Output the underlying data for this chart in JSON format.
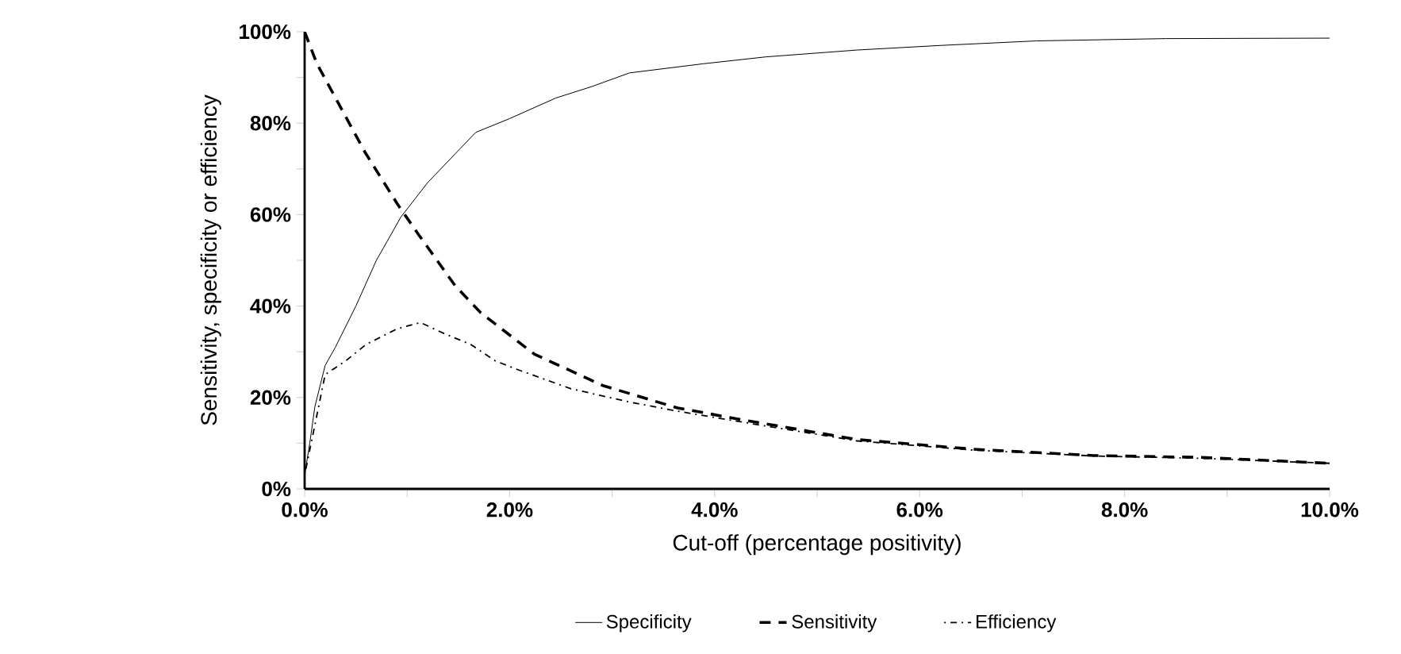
{
  "chart_data": {
    "type": "line",
    "xlabel": "Cut-off (percentage positivity)",
    "ylabel": "Sensitivity, specificity or efficiency",
    "xlim": [
      0,
      10
    ],
    "ylim": [
      0,
      100
    ],
    "xticks": [
      {
        "value": 0,
        "label": "0.0%"
      },
      {
        "value": 1,
        "label": null
      },
      {
        "value": 2,
        "label": "2.0%"
      },
      {
        "value": 3,
        "label": null
      },
      {
        "value": 4,
        "label": "4.0%"
      },
      {
        "value": 5,
        "label": null
      },
      {
        "value": 6,
        "label": "6.0%"
      },
      {
        "value": 7,
        "label": null
      },
      {
        "value": 8,
        "label": "8.0%"
      },
      {
        "value": 9,
        "label": null
      },
      {
        "value": 10,
        "label": "10.0%"
      }
    ],
    "yticks": [
      {
        "value": 0,
        "label": "0%"
      },
      {
        "value": 10,
        "label": null
      },
      {
        "value": 20,
        "label": "20%"
      },
      {
        "value": 30,
        "label": null
      },
      {
        "value": 40,
        "label": "40%"
      },
      {
        "value": 50,
        "label": null
      },
      {
        "value": 60,
        "label": "60%"
      },
      {
        "value": 70,
        "label": null
      },
      {
        "value": 80,
        "label": "80%"
      },
      {
        "value": 90,
        "label": null
      },
      {
        "value": 100,
        "label": "100%"
      }
    ],
    "legend": "bottom",
    "marker": "none",
    "series": [
      {
        "name": "Specificity",
        "color": "#000000",
        "line_style": "solid",
        "x": [
          0,
          0.05,
          0.1,
          0.2,
          0.3,
          0.5,
          0.7,
          0.94,
          1.2,
          1.67,
          2.0,
          2.45,
          2.8,
          3.17,
          3.89,
          4.5,
          5.39,
          6.2,
          7.14,
          8.4,
          10
        ],
        "values": [
          3,
          10,
          18,
          27,
          31,
          40,
          50,
          59.5,
          67,
          78,
          81,
          85.5,
          88,
          91,
          93,
          94.5,
          96,
          97,
          98,
          98.5,
          98.6
        ]
      },
      {
        "name": "Sensitivity",
        "color": "#000000",
        "line_style": "dashed",
        "x": [
          0,
          0.12,
          0.59,
          0.9,
          1.1,
          1.47,
          1.72,
          2.24,
          2.91,
          3.64,
          4.3,
          5.39,
          6.52,
          7.7,
          8.75,
          10
        ],
        "values": [
          100,
          93,
          73.6,
          62.5,
          56,
          44.4,
          38.5,
          29.5,
          22.6,
          17.7,
          15,
          10.8,
          8.7,
          7.3,
          6.9,
          5.6
        ]
      },
      {
        "name": "Efficiency",
        "color": "#000000",
        "line_style": "dotted",
        "x": [
          0,
          0.2,
          0.4,
          0.6,
          0.9,
          1.13,
          1.36,
          1.62,
          1.86,
          2.09,
          2.6,
          3.17,
          3.64,
          4.3,
          5.39,
          6.52,
          7.7,
          8.75,
          10
        ],
        "values": [
          3,
          25,
          28,
          31.6,
          35,
          36.4,
          34,
          31.6,
          28,
          26,
          21.9,
          19,
          17,
          14.5,
          10.5,
          8.5,
          7.2,
          6.7,
          5.6
        ]
      }
    ]
  }
}
